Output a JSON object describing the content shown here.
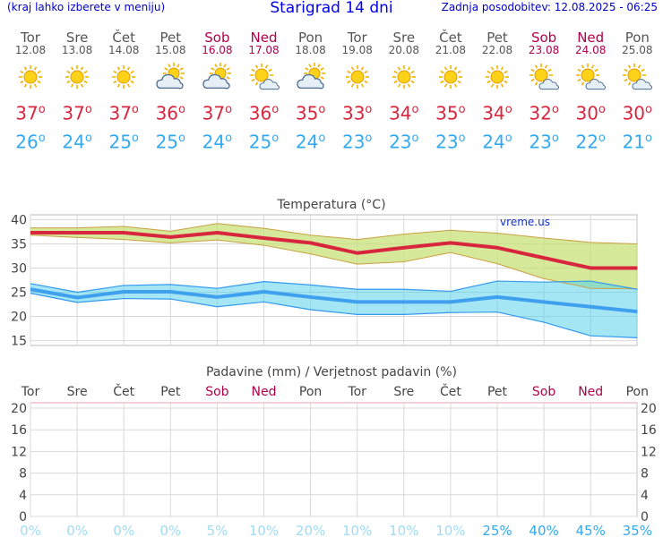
{
  "header": {
    "left_note": "(kraj lahko izberete v meniju)",
    "title": "Starigrad 14 dni",
    "updated": "Zadnja posodobitev: 12.08.2025 - 06:25"
  },
  "days": [
    {
      "name": "Tor",
      "date": "12.08",
      "weekend": false,
      "icon": "sun-icon",
      "tmax": "37",
      "tmin": "26"
    },
    {
      "name": "Sre",
      "date": "13.08",
      "weekend": false,
      "icon": "sun-icon",
      "tmax": "37",
      "tmin": "24"
    },
    {
      "name": "Čet",
      "date": "14.08",
      "weekend": false,
      "icon": "sun-icon",
      "tmax": "37",
      "tmin": "25"
    },
    {
      "name": "Pet",
      "date": "15.08",
      "weekend": false,
      "icon": "cloud-sun-icon",
      "tmax": "36",
      "tmin": "25"
    },
    {
      "name": "Sob",
      "date": "16.08",
      "weekend": true,
      "icon": "cloud-sun-icon",
      "tmax": "37",
      "tmin": "24"
    },
    {
      "name": "Ned",
      "date": "17.08",
      "weekend": true,
      "icon": "sun-cloud-icon",
      "tmax": "36",
      "tmin": "25"
    },
    {
      "name": "Pon",
      "date": "18.08",
      "weekend": false,
      "icon": "cloud-sun-icon",
      "tmax": "35",
      "tmin": "24"
    },
    {
      "name": "Tor",
      "date": "19.08",
      "weekend": false,
      "icon": "sun-icon",
      "tmax": "33",
      "tmin": "23"
    },
    {
      "name": "Sre",
      "date": "20.08",
      "weekend": false,
      "icon": "sun-icon",
      "tmax": "34",
      "tmin": "23"
    },
    {
      "name": "Čet",
      "date": "21.08",
      "weekend": false,
      "icon": "sun-icon",
      "tmax": "35",
      "tmin": "23"
    },
    {
      "name": "Pet",
      "date": "22.08",
      "weekend": false,
      "icon": "sun-icon",
      "tmax": "34",
      "tmin": "24"
    },
    {
      "name": "Sob",
      "date": "23.08",
      "weekend": true,
      "icon": "sun-cloud-icon",
      "tmax": "32",
      "tmin": "23"
    },
    {
      "name": "Ned",
      "date": "24.08",
      "weekend": true,
      "icon": "sun-cloud-icon",
      "tmax": "30",
      "tmin": "22"
    },
    {
      "name": "Pon",
      "date": "25.08",
      "weekend": false,
      "icon": "sun-cloud-icon",
      "tmax": "30",
      "tmin": "21"
    }
  ],
  "chart_data": [
    {
      "type": "line",
      "title": "Temperatura (°C)",
      "watermark": "vreme.us",
      "ylim": [
        14,
        41
      ],
      "yticks": [
        15,
        20,
        25,
        30,
        35,
        40
      ],
      "series": [
        {
          "name": "Tmax",
          "color": "#d7263d",
          "values": [
            37.3,
            37.3,
            37.3,
            36.4,
            37.3,
            36.2,
            35.2,
            33.1,
            34.2,
            35.2,
            34.2,
            32.1,
            30.0,
            30.0
          ]
        },
        {
          "name": "Tmax band upper",
          "color": "#b8c94a",
          "values": [
            38.3,
            38.3,
            38.6,
            37.6,
            39.2,
            38.2,
            36.8,
            35.9,
            37.0,
            37.8,
            37.2,
            36.2,
            35.3,
            35.0
          ]
        },
        {
          "name": "Tmax band lower",
          "color": "#b8c94a",
          "values": [
            36.8,
            36.3,
            35.9,
            35.2,
            35.8,
            34.7,
            32.9,
            30.8,
            31.3,
            33.2,
            30.9,
            27.8,
            25.8,
            25.7
          ]
        },
        {
          "name": "Tmin",
          "color": "#3399ee",
          "values": [
            25.6,
            23.9,
            25.1,
            25.1,
            24.0,
            25.1,
            24.0,
            23.0,
            23.0,
            23.0,
            24.0,
            23.0,
            22.0,
            21.0
          ]
        },
        {
          "name": "Tmin band upper",
          "color": "#3399ee",
          "values": [
            26.8,
            25.0,
            26.4,
            26.6,
            25.8,
            27.2,
            26.5,
            25.6,
            25.6,
            25.2,
            27.3,
            27.1,
            27.3,
            25.6
          ]
        },
        {
          "name": "Tmin band lower",
          "color": "#3399ee",
          "values": [
            24.8,
            22.9,
            23.7,
            23.6,
            22.0,
            23.0,
            21.4,
            20.4,
            20.4,
            20.8,
            20.9,
            18.8,
            16.0,
            15.6
          ]
        }
      ]
    },
    {
      "type": "bar",
      "title": "Padavine (mm) / Verjetnost padavin (%)",
      "categories": [
        "Tor",
        "Sre",
        "Čet",
        "Pet",
        "Sob",
        "Ned",
        "Pon",
        "Tor",
        "Sre",
        "Čet",
        "Pet",
        "Sob",
        "Ned",
        "Pon"
      ],
      "weekend": [
        false,
        false,
        false,
        false,
        true,
        true,
        false,
        false,
        false,
        false,
        false,
        true,
        true,
        false
      ],
      "ylim": [
        0,
        21
      ],
      "yticks": [
        0,
        4,
        8,
        12,
        16,
        20
      ],
      "values": [
        0,
        0,
        0,
        0,
        0,
        0,
        0,
        0,
        0,
        0,
        0,
        0,
        0,
        0
      ],
      "probability": [
        "0%",
        "0%",
        "0%",
        "0%",
        "5%",
        "10%",
        "20%",
        "10%",
        "10%",
        "10%",
        "25%",
        "40%",
        "45%",
        "35%"
      ]
    }
  ]
}
